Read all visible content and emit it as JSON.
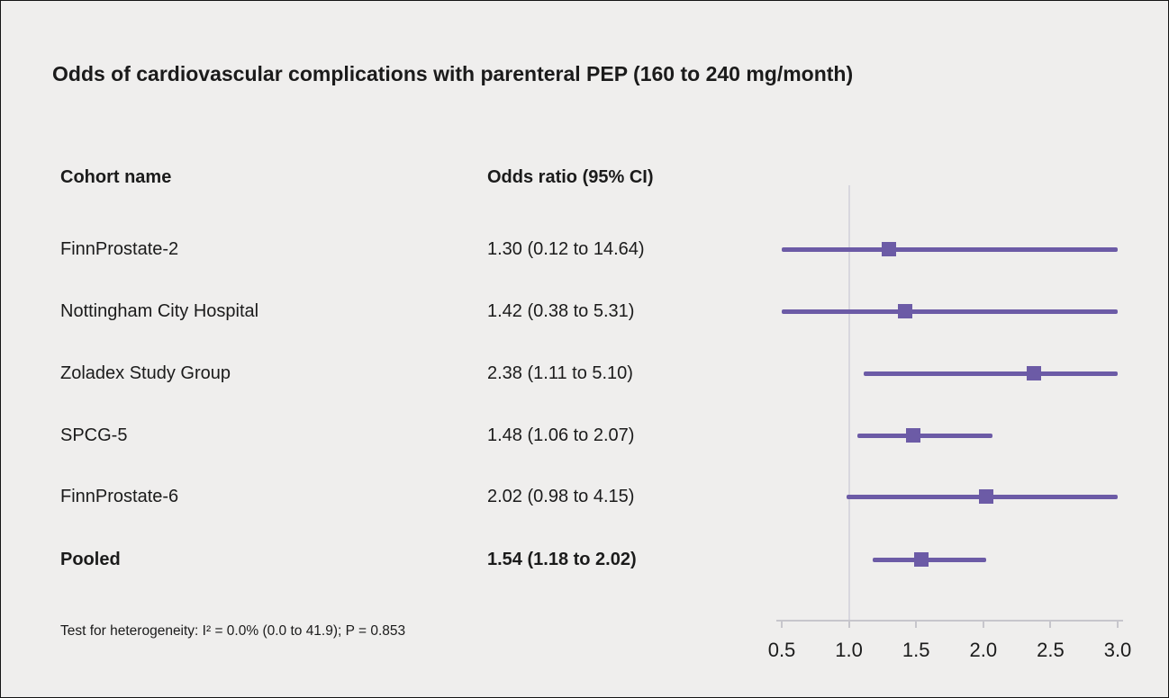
{
  "title": "Odds of cardiovascular complications with parenteral PEP (160 to 240 mg/month)",
  "table": {
    "col1_header": "Cohort name",
    "col2_header": "Odds ratio (95% CI)"
  },
  "footnote": "Test for heterogeneity: I² = 0.0% (0.0 to 41.9); P = 0.853",
  "colors": {
    "accent": "#6c5ba6",
    "background": "#efeeed",
    "text": "#1b1b1b",
    "axis_line": "#c7c6cc",
    "reference_line": "#d8d7de"
  },
  "chart_data": {
    "type": "forest",
    "title": "Odds of cardiovascular complications with parenteral PEP (160 to 240 mg/month)",
    "xlabel": "Odds ratio",
    "xlim": [
      0.5,
      3.0
    ],
    "ticks": [
      0.5,
      1.0,
      1.5,
      2.0,
      2.5,
      3.0
    ],
    "tick_labels": [
      "0.5",
      "1.0",
      "1.5",
      "2.0",
      "2.5",
      "3.0"
    ],
    "reference_line": 1.0,
    "clipped_to_axis_range": true,
    "rows": [
      {
        "label": "FinnProstate-2",
        "or_text": "1.30 (0.12 to 14.64)",
        "or": 1.3,
        "lo": 0.12,
        "hi": 14.64,
        "bold": false
      },
      {
        "label": "Nottingham City Hospital",
        "or_text": "1.42 (0.38 to 5.31)",
        "or": 1.42,
        "lo": 0.38,
        "hi": 5.31,
        "bold": false
      },
      {
        "label": "Zoladex Study Group",
        "or_text": "2.38 (1.11 to 5.10)",
        "or": 2.38,
        "lo": 1.11,
        "hi": 5.1,
        "bold": false
      },
      {
        "label": "SPCG-5",
        "or_text": "1.48 (1.06 to 2.07)",
        "or": 1.48,
        "lo": 1.06,
        "hi": 2.07,
        "bold": false
      },
      {
        "label": "FinnProstate-6",
        "or_text": "2.02 (0.98 to 4.15)",
        "or": 2.02,
        "lo": 0.98,
        "hi": 4.15,
        "bold": false
      },
      {
        "label": "Pooled",
        "or_text": "1.54 (1.18 to 2.02)",
        "or": 1.54,
        "lo": 1.18,
        "hi": 2.02,
        "bold": true
      }
    ]
  }
}
